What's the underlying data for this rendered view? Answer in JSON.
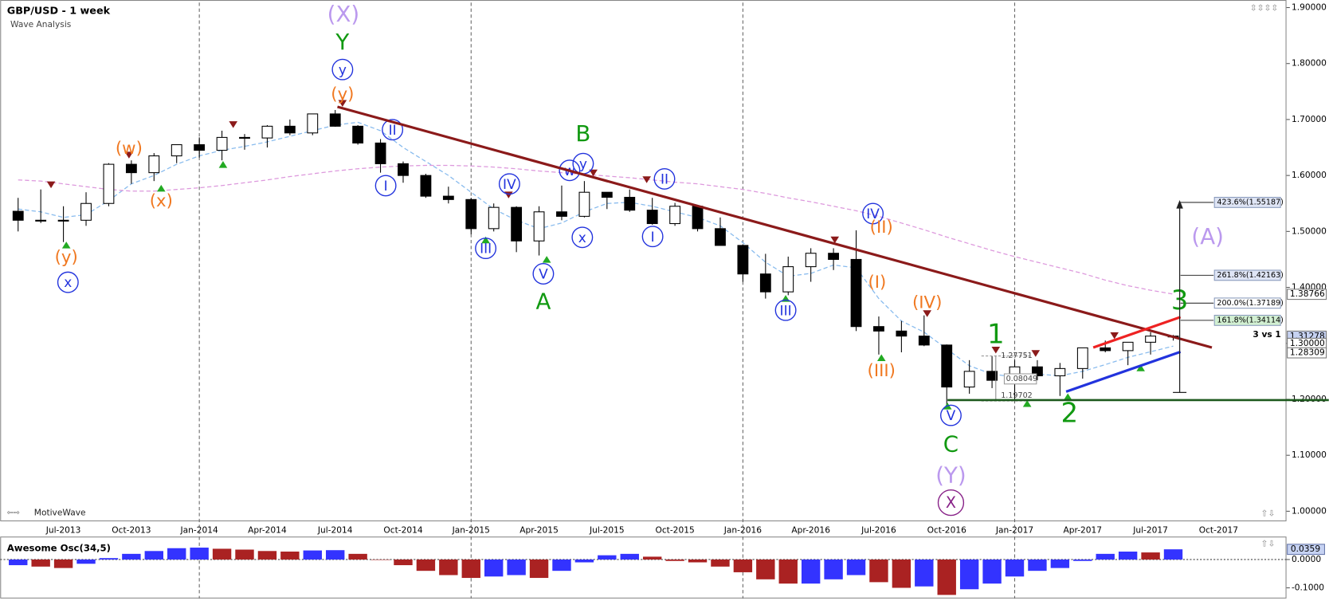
{
  "chart_data": [
    {
      "type": "candlestick",
      "title": "GBP/USD - 1 week",
      "subtitle": "Wave Analysis",
      "source": "MotiveWave",
      "categories": [
        null,
        null,
        "Jul-2013",
        null,
        null,
        "Oct-2013",
        null,
        null,
        "Jan-2014",
        null,
        null,
        "Apr-2014",
        null,
        null,
        "Jul-2014",
        null,
        null,
        "Oct-2014",
        null,
        null,
        "Jan-2015",
        null,
        null,
        "Apr-2015",
        null,
        null,
        "Jul-2015",
        null,
        null,
        "Oct-2015",
        null,
        null,
        "Jan-2016",
        null,
        null,
        "Apr-2016",
        null,
        null,
        "Jul-2016",
        null,
        null,
        "Oct-2016",
        null,
        null,
        "Jan-2017",
        null,
        null,
        "Apr-2017",
        null,
        null,
        "Jul-2017",
        null,
        null,
        "Oct-2017"
      ],
      "open": [
        1.536,
        1.52,
        1.52,
        1.52,
        1.55,
        1.62,
        1.605,
        1.635,
        1.655,
        1.645,
        1.668,
        1.667,
        1.688,
        1.676,
        1.71,
        1.688,
        1.658,
        1.621,
        1.6,
        1.563,
        1.557,
        1.505,
        1.543,
        1.483,
        1.535,
        1.527,
        1.57,
        1.561,
        1.538,
        1.514,
        1.545,
        1.505,
        1.475,
        1.424,
        1.392,
        1.437,
        1.461,
        1.45,
        1.33,
        1.322,
        1.313,
        1.297,
        1.222,
        1.25,
        1.234,
        1.258,
        1.242,
        1.255,
        1.292,
        1.287,
        1.302,
        1.313,
        null,
        null
      ],
      "high": [
        1.56,
        1.575,
        1.545,
        1.57,
        1.622,
        1.627,
        1.64,
        1.655,
        1.668,
        1.68,
        1.674,
        1.69,
        1.7,
        1.71,
        1.717,
        1.69,
        1.665,
        1.625,
        1.603,
        1.58,
        1.56,
        1.55,
        1.545,
        1.545,
        1.582,
        1.59,
        1.57,
        1.575,
        1.56,
        1.551,
        1.545,
        1.525,
        1.477,
        1.46,
        1.455,
        1.47,
        1.47,
        1.502,
        1.348,
        1.34,
        1.35,
        1.298,
        1.27,
        1.277,
        1.27,
        1.27,
        1.265,
        1.292,
        1.305,
        1.301,
        1.32,
        1.315,
        null,
        null
      ],
      "low": [
        1.5,
        1.515,
        1.481,
        1.51,
        1.545,
        1.585,
        1.59,
        1.622,
        1.632,
        1.627,
        1.646,
        1.65,
        1.672,
        1.672,
        1.687,
        1.655,
        1.605,
        1.587,
        1.56,
        1.55,
        1.495,
        1.5,
        1.463,
        1.457,
        1.52,
        1.525,
        1.54,
        1.535,
        1.512,
        1.51,
        1.5,
        1.475,
        1.41,
        1.38,
        1.386,
        1.41,
        1.431,
        1.322,
        1.28,
        1.284,
        1.295,
        1.184,
        1.21,
        1.22,
        1.198,
        1.234,
        1.206,
        1.237,
        1.284,
        1.261,
        1.28,
        1.305,
        null,
        null
      ],
      "close": [
        1.52,
        1.52,
        1.52,
        1.55,
        1.62,
        1.605,
        1.635,
        1.655,
        1.645,
        1.668,
        1.667,
        1.688,
        1.676,
        1.71,
        1.688,
        1.658,
        1.621,
        1.6,
        1.563,
        1.557,
        1.505,
        1.543,
        1.483,
        1.535,
        1.527,
        1.57,
        1.561,
        1.538,
        1.514,
        1.545,
        1.505,
        1.475,
        1.424,
        1.392,
        1.437,
        1.461,
        1.45,
        1.33,
        1.322,
        1.313,
        1.297,
        1.222,
        1.25,
        1.234,
        1.258,
        1.242,
        1.255,
        1.292,
        1.287,
        1.302,
        1.313,
        1.313,
        null,
        null
      ],
      "series": [
        {
          "color": "#88bbee",
          "values": [
            1.54,
            1.535,
            1.525,
            1.53,
            1.555,
            1.585,
            1.6,
            1.62,
            1.635,
            1.645,
            1.652,
            1.66,
            1.67,
            1.68,
            1.69,
            1.695,
            1.68,
            1.65,
            1.625,
            1.6,
            1.57,
            1.54,
            1.52,
            1.505,
            1.515,
            1.535,
            1.55,
            1.552,
            1.545,
            1.535,
            1.525,
            1.51,
            1.48,
            1.445,
            1.42,
            1.425,
            1.44,
            1.435,
            1.38,
            1.34,
            1.32,
            1.29,
            1.26,
            1.245,
            1.24,
            1.245,
            1.242,
            1.25,
            1.262,
            1.275,
            1.285,
            1.295,
            null,
            null
          ]
        },
        {
          "color": "#dd99dd",
          "values": [
            1.592,
            1.59,
            1.585,
            1.58,
            1.575,
            1.572,
            1.572,
            1.575,
            1.578,
            1.582,
            1.587,
            1.592,
            1.598,
            1.603,
            1.608,
            1.612,
            1.615,
            1.617,
            1.618,
            1.618,
            1.617,
            1.615,
            1.612,
            1.608,
            1.605,
            1.602,
            1.599,
            1.596,
            1.592,
            1.588,
            1.585,
            1.58,
            1.575,
            1.568,
            1.56,
            1.553,
            1.545,
            1.537,
            1.527,
            1.515,
            1.503,
            1.49,
            1.478,
            1.466,
            1.455,
            1.445,
            1.435,
            1.425,
            1.413,
            1.403,
            1.395,
            1.388,
            null,
            null
          ]
        }
      ],
      "ylim": [
        0.982,
        1.909
      ],
      "yticks": [
        {
          "value": 1.0,
          "label": "1.00000"
        },
        {
          "value": 1.1,
          "label": "1.10000"
        },
        {
          "value": 1.2,
          "label": "1.20000"
        },
        {
          "value": 1.3,
          "label": "1.30000"
        },
        {
          "value": 1.4,
          "label": "1.40000"
        },
        {
          "value": 1.5,
          "label": "1.50000"
        },
        {
          "value": 1.6,
          "label": "1.60000"
        },
        {
          "value": 1.7,
          "label": "1.70000"
        },
        {
          "value": 1.8,
          "label": "1.80000"
        },
        {
          "value": 1.9,
          "label": "1.90000"
        }
      ],
      "price_tags": [
        1.38766,
        1.31278,
        {
          "value": 1.3,
          "label": "1.30000"
        },
        1.28309
      ],
      "price_tag_colors": [
        "#ffffff",
        "#c6d2f2",
        "#ffffff",
        "#ffffff"
      ],
      "fib_levels": [
        {
          "value": 1.55187,
          "label": "423.6%(1.55187)"
        },
        {
          "value": 1.42163,
          "label": "261.8%(1.42163)"
        },
        {
          "value": 1.37189,
          "label": "200.0%(1.37189)"
        },
        {
          "value": 1.34114,
          "label": "161.8%(1.34114)"
        }
      ],
      "fib_colors": [
        "#dfe5f5",
        "#dfe5f5",
        "#ffffff",
        "#d2f0d2"
      ],
      "measure": {
        "high": 1.27751,
        "range": 0.08049,
        "low": 1.19702
      },
      "annotations": [
        {
          "text": "(X)",
          "color": "#bb99ee",
          "circled": false
        },
        {
          "text": "Y",
          "color": "#119911",
          "circled": false
        },
        {
          "text": "y",
          "color": "#2233dd",
          "circled": true
        },
        {
          "text": "(y)",
          "color": "#f07820",
          "circled": false
        },
        {
          "text": "(w)",
          "color": "#f07820",
          "circled": false
        },
        {
          "text": "(x)",
          "color": "#f07820",
          "circled": false
        },
        {
          "text": "(y)",
          "color": "#f07820",
          "circled": false
        },
        {
          "text": "x",
          "color": "#2233dd",
          "circled": true
        },
        {
          "text": "II",
          "color": "#2233dd",
          "circled": true
        },
        {
          "text": "I",
          "color": "#2233dd",
          "circled": true
        },
        {
          "text": "B",
          "color": "#119911",
          "circled": false
        },
        {
          "text": "y",
          "color": "#2233dd",
          "circled": true
        },
        {
          "text": "w",
          "color": "#2233dd",
          "circled": true
        },
        {
          "text": "IV",
          "color": "#2233dd",
          "circled": true
        },
        {
          "text": "II",
          "color": "#2233dd",
          "circled": true
        },
        {
          "text": "III",
          "color": "#2233dd",
          "circled": true
        },
        {
          "text": "x",
          "color": "#2233dd",
          "circled": true
        },
        {
          "text": "I",
          "color": "#2233dd",
          "circled": true
        },
        {
          "text": "V",
          "color": "#2233dd",
          "circled": true
        },
        {
          "text": "A",
          "color": "#119911",
          "circled": false
        },
        {
          "text": "IV",
          "color": "#2233dd",
          "circled": true
        },
        {
          "text": "(II)",
          "color": "#f07820",
          "circled": false
        },
        {
          "text": "(I)",
          "color": "#f07820",
          "circled": false
        },
        {
          "text": "(IV)",
          "color": "#f07820",
          "circled": false
        },
        {
          "text": "(III)",
          "color": "#f07820",
          "circled": false
        },
        {
          "text": "III",
          "color": "#2233dd",
          "circled": true
        },
        {
          "text": "1",
          "color": "#119911",
          "circled": false
        },
        {
          "text": "2",
          "color": "#119911",
          "circled": false
        },
        {
          "text": "V",
          "color": "#2233dd",
          "circled": true
        },
        {
          "text": "C",
          "color": "#119911",
          "circled": false
        },
        {
          "text": "(Y)",
          "color": "#bb99ee",
          "circled": false
        },
        {
          "text": "X",
          "color": "#882288",
          "circled": true
        },
        {
          "text": "(A)",
          "color": "#bb99ee",
          "circled": false
        },
        {
          "text": "3",
          "color": "#119911",
          "circled": false
        },
        {
          "text": "3 vs 1",
          "color": "#000000",
          "circled": false
        }
      ]
    },
    {
      "type": "bar",
      "title": "Awesome Osc(34,5)",
      "up_color": "#3333ff",
      "down_color": "#aa2222",
      "values": [
        -0.02,
        -0.025,
        -0.03,
        -0.015,
        0.005,
        0.02,
        0.03,
        0.04,
        0.042,
        0.038,
        0.035,
        0.03,
        0.028,
        0.032,
        0.033,
        0.02,
        0.0,
        -0.02,
        -0.04,
        -0.055,
        -0.065,
        -0.06,
        -0.055,
        -0.065,
        -0.04,
        -0.01,
        0.015,
        0.02,
        0.01,
        -0.005,
        -0.01,
        -0.025,
        -0.045,
        -0.07,
        -0.085,
        -0.085,
        -0.07,
        -0.055,
        -0.08,
        -0.1,
        -0.095,
        -0.125,
        -0.105,
        -0.085,
        -0.06,
        -0.04,
        -0.03,
        -0.005,
        0.02,
        0.028,
        0.025,
        0.036,
        null,
        null
      ],
      "ylim": [
        -0.1375,
        0.078
      ],
      "yticks": [
        {
          "value": 0,
          "label": "0.0000"
        },
        {
          "value": -0.1,
          "label": "-0.1000"
        }
      ],
      "value_tag": 0.0359
    }
  ]
}
